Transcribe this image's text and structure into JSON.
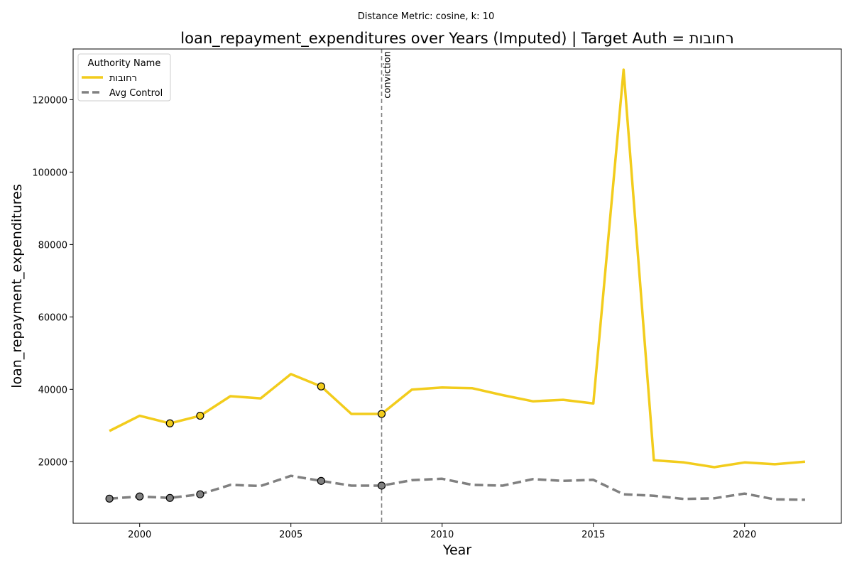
{
  "chart_data": {
    "type": "line",
    "suptitle": "Distance Metric: cosine, k: 10",
    "title": "loan_repayment_expenditures over Years (Imputed) | Target Auth = רחובות",
    "xlabel": "Year",
    "ylabel": "loan_repayment_expenditures",
    "xlim": [
      1997.8,
      2023.2
    ],
    "ylim": [
      3000,
      134000
    ],
    "xticks": [
      2000,
      2005,
      2010,
      2015,
      2020
    ],
    "yticks": [
      20000,
      40000,
      60000,
      80000,
      100000,
      120000
    ],
    "grid": false,
    "legend": {
      "title": "Authority Name",
      "placement": "top-left"
    },
    "x": [
      1999,
      2000,
      2001,
      2002,
      2003,
      2004,
      2005,
      2006,
      2007,
      2008,
      2009,
      2010,
      2011,
      2012,
      2013,
      2014,
      2015,
      2016,
      2017,
      2018,
      2019,
      2020,
      2021,
      2022
    ],
    "series": [
      {
        "name": "רחובות",
        "color": "#f2cc1c",
        "style": "solid",
        "values": [
          28500,
          32700,
          30600,
          32700,
          38100,
          37500,
          44200,
          40800,
          33200,
          33200,
          39900,
          40500,
          40300,
          38400,
          36700,
          37100,
          36100,
          128300,
          20400,
          19800,
          18500,
          19800,
          19300,
          20000
        ],
        "markers": [
          2001,
          2002,
          2006,
          2008
        ]
      },
      {
        "name": "Avg Control",
        "color": "#808080",
        "style": "dashed",
        "values": [
          9800,
          10400,
          10000,
          11000,
          13600,
          13300,
          16100,
          14700,
          13400,
          13400,
          14900,
          15300,
          13600,
          13400,
          15200,
          14700,
          15000,
          11000,
          10600,
          9700,
          9900,
          11200,
          9600,
          9500
        ],
        "markers": [
          1999,
          2000,
          2001,
          2002,
          2006,
          2008
        ]
      }
    ],
    "annotations": [
      {
        "type": "vline",
        "x": 2008,
        "label": "conviction",
        "color": "#808080"
      }
    ]
  }
}
